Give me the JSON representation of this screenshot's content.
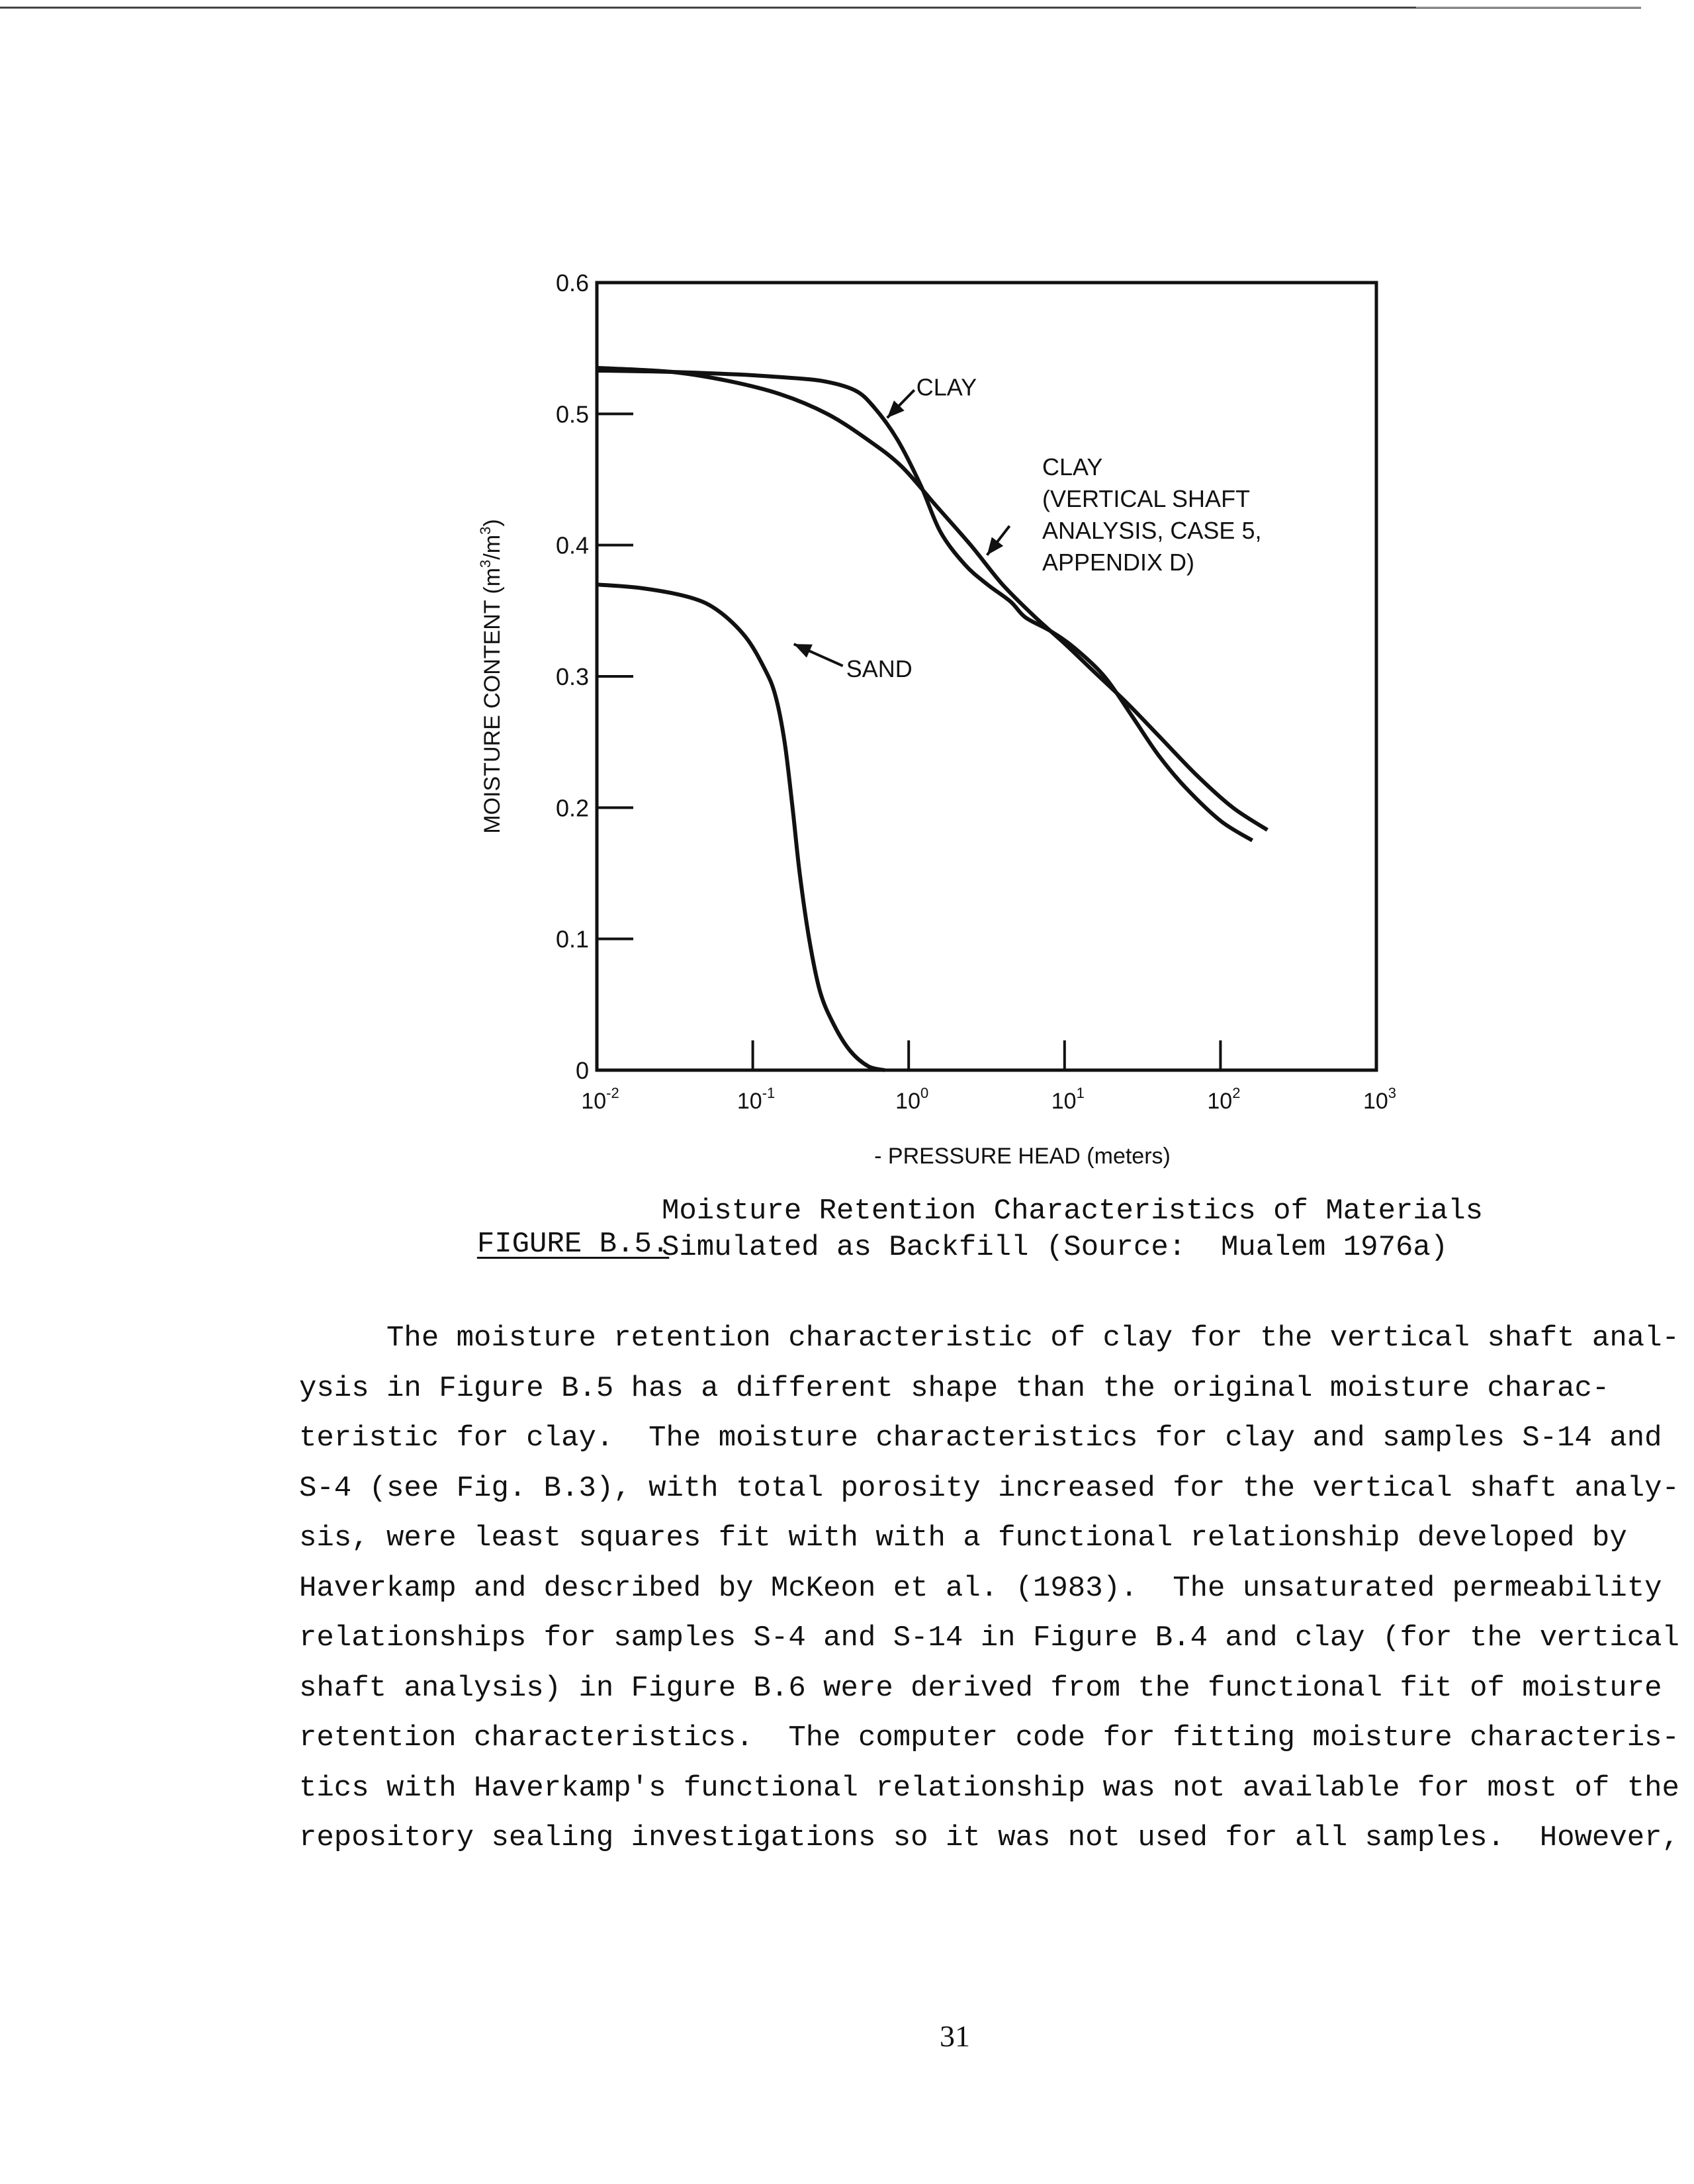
{
  "chart_data": {
    "type": "line",
    "xscale": "log",
    "xlim": [
      0.01,
      1000
    ],
    "ylim": [
      0,
      0.6
    ],
    "xlabel": "- PRESSURE HEAD (meters)",
    "ylabel": "MOISTURE CONTENT (m3/m3)",
    "ylabel_parts": [
      "MOISTURE CONTENT (m",
      "3",
      "/m",
      "3",
      ")"
    ],
    "y_ticks": [
      "0",
      "0.1",
      "0.2",
      "0.3",
      "0.4",
      "0.5",
      "0.6"
    ],
    "x_ticks": [
      {
        "base": "10",
        "exp": "-2"
      },
      {
        "base": "10",
        "exp": "-1"
      },
      {
        "base": "10",
        "exp": "0"
      },
      {
        "base": "10",
        "exp": "1"
      },
      {
        "base": "10",
        "exp": "2"
      },
      {
        "base": "10",
        "exp": "3"
      }
    ],
    "series": [
      {
        "name": "CLAY",
        "x": [
          0.01,
          0.03,
          0.08,
          0.15,
          0.28,
          0.45,
          0.6,
          0.85,
          1.2,
          1.6,
          2.3,
          3.2,
          4.5,
          5.6,
          8.0,
          11.5,
          18,
          27,
          40,
          60,
          100,
          160
        ],
        "y": [
          0.533,
          0.532,
          0.53,
          0.528,
          0.525,
          0.518,
          0.505,
          0.48,
          0.445,
          0.41,
          0.385,
          0.37,
          0.357,
          0.345,
          0.335,
          0.322,
          0.3,
          0.27,
          0.24,
          0.215,
          0.19,
          0.175
        ]
      },
      {
        "name": "CLAY (VERTICAL SHAFT ANALYSIS, CASE 5, APPENDIX D)",
        "x": [
          0.01,
          0.03,
          0.07,
          0.15,
          0.3,
          0.55,
          0.9,
          1.5,
          2.5,
          4.0,
          6.5,
          10,
          15,
          25,
          40,
          70,
          120,
          200
        ],
        "y": [
          0.535,
          0.532,
          0.525,
          0.515,
          0.5,
          0.48,
          0.46,
          0.43,
          0.4,
          0.37,
          0.345,
          0.325,
          0.305,
          0.28,
          0.255,
          0.225,
          0.2,
          0.183
        ]
      },
      {
        "name": "SAND",
        "x": [
          0.01,
          0.02,
          0.04,
          0.06,
          0.09,
          0.12,
          0.14,
          0.16,
          0.18,
          0.2,
          0.23,
          0.27,
          0.33,
          0.42,
          0.55,
          0.7
        ],
        "y": [
          0.37,
          0.367,
          0.36,
          0.35,
          0.33,
          0.305,
          0.285,
          0.25,
          0.2,
          0.15,
          0.1,
          0.06,
          0.035,
          0.015,
          0.003,
          0.0
        ]
      }
    ],
    "annotations": [
      {
        "text": "CLAY",
        "target_series": 0,
        "at_x": 0.7
      },
      {
        "lines": [
          "CLAY",
          "(VERTICAL SHAFT",
          "ANALYSIS, CASE 5,",
          "APPENDIX D)"
        ],
        "target_series": 1,
        "at_x": 3.0
      },
      {
        "text": "SAND",
        "target_series": 2,
        "at_x": 0.16
      }
    ],
    "grid": false
  },
  "caption": {
    "label": "FIGURE B.5.",
    "line1": "Moisture Retention Characteristics of Materials",
    "line2": "Simulated as Backfill (Source:  Mualem 1976a)"
  },
  "body_lines": [
    "     The moisture retention characteristic of clay for the vertical shaft anal-",
    "ysis in Figure B.5 has a different shape than the original moisture charac-",
    "teristic for clay.  The moisture characteristics for clay and samples S-14 and",
    "S-4 (see Fig. B.3), with total porosity increased for the vertical shaft analy-",
    "sis, were least squares fit with with a functional relationship developed by",
    "Haverkamp and described by McKeon et al. (1983).  The unsaturated permeability",
    "relationships for samples S-4 and S-14 in Figure B.4 and clay (for the vertical",
    "shaft analysis) in Figure B.6 were derived from the functional fit of moisture",
    "retention characteristics.  The computer code for fitting moisture characteris-",
    "tics with Haverkamp's functional relationship was not available for most of the",
    "repository sealing investigations so it was not used for all samples.  However,"
  ],
  "page_number": "31"
}
